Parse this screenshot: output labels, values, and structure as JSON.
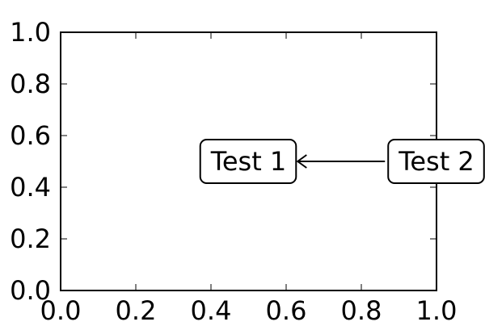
{
  "chart_data": {
    "type": "scatter",
    "title": "",
    "xlabel": "",
    "ylabel": "",
    "xlim": [
      0.0,
      1.0
    ],
    "ylim": [
      0.0,
      1.0
    ],
    "xticks": [
      "0.0",
      "0.2",
      "0.4",
      "0.6",
      "0.8",
      "1.0"
    ],
    "yticks": [
      "0.0",
      "0.2",
      "0.4",
      "0.6",
      "0.8",
      "1.0"
    ],
    "grid": false,
    "legend": "none",
    "series": [],
    "annotations": [
      {
        "text": "Test 1",
        "x": 0.5,
        "y": 0.5,
        "box": "rounded",
        "anchor": "middle"
      },
      {
        "text": "Test 2",
        "x": 1.0,
        "y": 0.5,
        "box": "rounded",
        "anchor": "middle",
        "arrow_to": "Test 1"
      }
    ],
    "colors": {
      "frame": "#000000",
      "text": "#000000",
      "box_fill": "#ffffff",
      "background": "#ffffff"
    }
  }
}
